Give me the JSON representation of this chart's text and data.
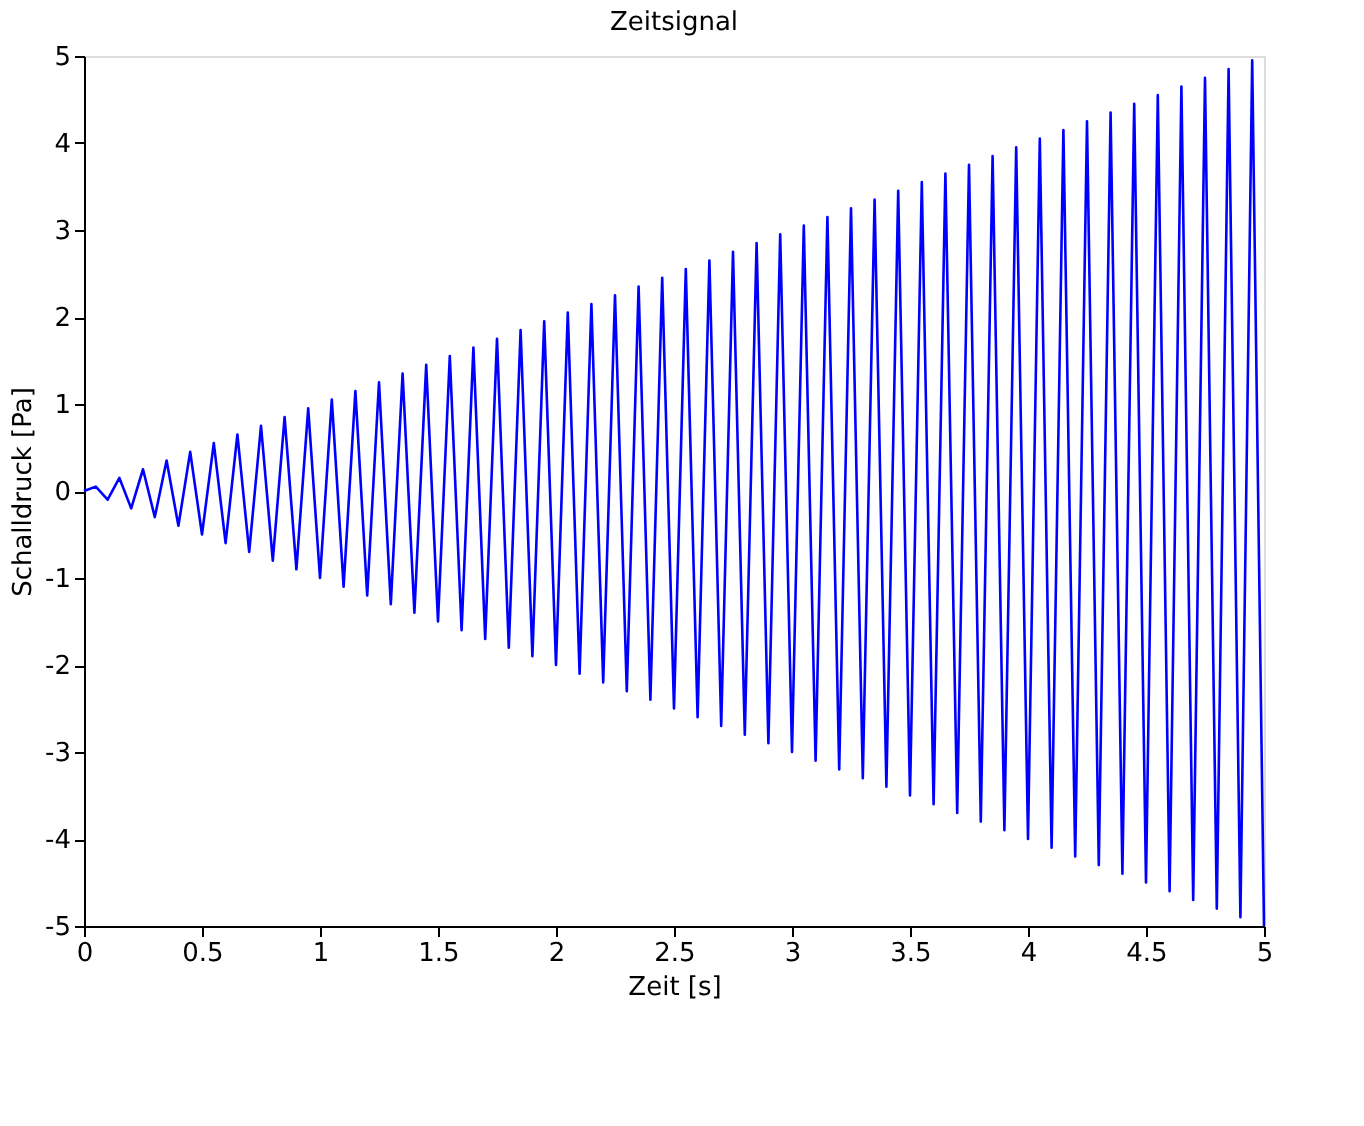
{
  "chart_data": {
    "type": "line",
    "title": "Zeitsignal",
    "xlabel": "Zeit [s]",
    "ylabel": "Schalldruck [Pa]",
    "xlim": [
      0,
      5
    ],
    "ylim": [
      -5,
      5
    ],
    "xticks": [
      0,
      0.5,
      1,
      1.5,
      2,
      2.5,
      3,
      3.5,
      4,
      4.5,
      5
    ],
    "yticks": [
      -5,
      -4,
      -3,
      -2,
      -1,
      0,
      1,
      2,
      3,
      4,
      5
    ],
    "grid": false,
    "marker": "none",
    "line_style": "solid",
    "series": [
      {
        "color": "#0000ff",
        "x": [
          0,
          0.05,
          0.1,
          0.15,
          0.2,
          0.25,
          0.3,
          0.35,
          0.4,
          0.45,
          0.5,
          0.55,
          0.6,
          0.65,
          0.7,
          0.75,
          0.8,
          0.85,
          0.9,
          0.95,
          1,
          1.05,
          1.1,
          1.15,
          1.2,
          1.25,
          1.3,
          1.35,
          1.4,
          1.45,
          1.5,
          1.55,
          1.6,
          1.65,
          1.7,
          1.75,
          1.8,
          1.85,
          1.9,
          1.95,
          2,
          2.05,
          2.1,
          2.15,
          2.2,
          2.25,
          2.3,
          2.35,
          2.4,
          2.45,
          2.5,
          2.55,
          2.6,
          2.65,
          2.7,
          2.75,
          2.8,
          2.85,
          2.9,
          2.95,
          3,
          3.05,
          3.1,
          3.15,
          3.2,
          3.25,
          3.3,
          3.35,
          3.4,
          3.45,
          3.5,
          3.55,
          3.6,
          3.65,
          3.7,
          3.75,
          3.8,
          3.85,
          3.9,
          3.95,
          4,
          4.05,
          4.1,
          4.15,
          4.2,
          4.25,
          4.3,
          4.35,
          4.4,
          4.45,
          4.5,
          4.55,
          4.6,
          4.65,
          4.7,
          4.75,
          4.8,
          4.85,
          4.9,
          4.95,
          5
        ],
        "values": [
          0,
          0.05,
          -0.1,
          0.15,
          -0.2,
          0.25,
          -0.3,
          0.35,
          -0.4,
          0.45,
          -0.5,
          0.55,
          -0.6,
          0.65,
          -0.7,
          0.75,
          -0.8,
          0.85,
          -0.9,
          0.95,
          -1,
          1.05,
          -1.1,
          1.15,
          -1.2,
          1.25,
          -1.3,
          1.35,
          -1.4,
          1.45,
          -1.5,
          1.55,
          -1.6,
          1.65,
          -1.7,
          1.75,
          -1.8,
          1.85,
          -1.9,
          1.95,
          -2,
          2.05,
          -2.1,
          2.15,
          -2.2,
          2.25,
          -2.3,
          2.35,
          -2.4,
          2.45,
          -2.5,
          2.55,
          -2.6,
          2.65,
          -2.7,
          2.75,
          -2.8,
          2.85,
          -2.9,
          2.95,
          -3,
          3.05,
          -3.1,
          3.15,
          -3.2,
          3.25,
          -3.3,
          3.35,
          -3.4,
          3.45,
          -3.5,
          3.55,
          -3.6,
          3.65,
          -3.7,
          3.75,
          -3.8,
          3.85,
          -3.9,
          3.95,
          -4,
          4.05,
          -4.1,
          4.15,
          -4.2,
          4.25,
          -4.3,
          4.35,
          -4.4,
          4.45,
          -4.5,
          4.55,
          -4.6,
          4.65,
          -4.7,
          4.75,
          -4.8,
          4.85,
          -4.9,
          4.95,
          -5
        ]
      }
    ]
  }
}
